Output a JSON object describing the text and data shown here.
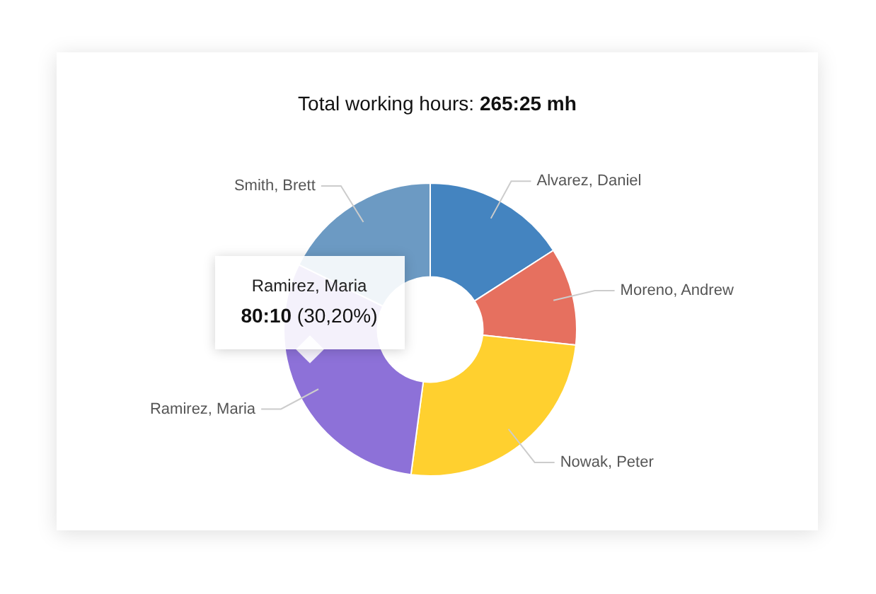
{
  "chart_data": {
    "type": "donut",
    "title": "Total working hours: 265:25 mh",
    "categories": [
      "Alvarez, Daniel",
      "Moreno, Andrew",
      "Nowak, Peter",
      "Ramirez, Maria",
      "Smith, Brett"
    ],
    "values": [
      15.9,
      10.8,
      25.4,
      30.2,
      17.7
    ],
    "colors": [
      "#4484c0",
      "#e6705f",
      "#ffd02f",
      "#8d71d8",
      "#6c9ac3"
    ],
    "annotations": [
      {
        "text": "Ramirez, Maria\n80:10 (30,20%)",
        "x": "Ramirez, Maria"
      }
    ]
  }
}
